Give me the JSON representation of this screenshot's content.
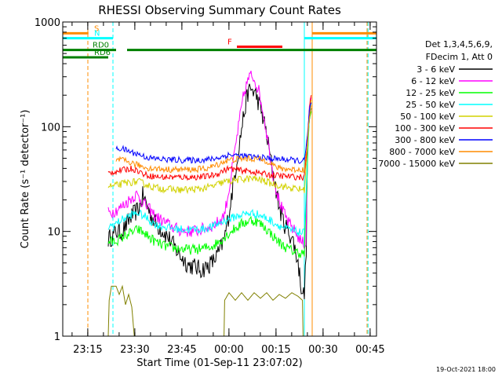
{
  "chart_data": {
    "type": "line",
    "title": "RHESSI Observing Summary Count Rates",
    "xlabel": "Start Time (01-Sep-11 23:07:02)",
    "ylabel": "Count Rate (s⁻¹ detector⁻¹)",
    "yscale": "log",
    "ylim": [
      1,
      1000
    ],
    "xlim_minutes_after_start": [
      0,
      100
    ],
    "x_tick_labels": [
      "23:15",
      "23:30",
      "23:45",
      "00:00",
      "00:15",
      "00:30",
      "00:45"
    ],
    "x_tick_minutes": [
      7.97,
      22.97,
      37.97,
      52.97,
      67.97,
      82.97,
      97.97
    ],
    "y_tick_labels": [
      "1",
      "10",
      "100",
      "1000"
    ],
    "y_tick_values": [
      1,
      10,
      100,
      1000
    ],
    "legend_header": [
      "Det 1,3,4,5,6,9,",
      "FDecim 1, Att 0"
    ],
    "legend_position": "right",
    "series": [
      {
        "name": "3 - 6 keV",
        "color": "#000000",
        "noise": 0.09,
        "points": [
          [
            14.5,
            8.5
          ],
          [
            16,
            9
          ],
          [
            17,
            10
          ],
          [
            18.5,
            9.8
          ],
          [
            20,
            11
          ],
          [
            21.5,
            13.5
          ],
          [
            23,
            15
          ],
          [
            24.5,
            17
          ],
          [
            25.5,
            22
          ],
          [
            26.5,
            19
          ],
          [
            28,
            14.5
          ],
          [
            30,
            11.5
          ],
          [
            32,
            10
          ],
          [
            34,
            8.5
          ],
          [
            36,
            6.8
          ],
          [
            38,
            5.6
          ],
          [
            40,
            4.8
          ],
          [
            42,
            4.6
          ],
          [
            44,
            4.3
          ],
          [
            46,
            4.6
          ],
          [
            48,
            5.2
          ],
          [
            50,
            6.5
          ],
          [
            51.5,
            8.5
          ],
          [
            53,
            15
          ],
          [
            54.5,
            30
          ],
          [
            56,
            60
          ],
          [
            57.5,
            120
          ],
          [
            59,
            210
          ],
          [
            60,
            230
          ],
          [
            61.5,
            205
          ],
          [
            63,
            150
          ],
          [
            64.5,
            100
          ],
          [
            66,
            55
          ],
          [
            67.5,
            30
          ],
          [
            69,
            17
          ],
          [
            70.5,
            12
          ],
          [
            72,
            10
          ],
          [
            73.5,
            8
          ],
          [
            75,
            5
          ],
          [
            76,
            3
          ],
          [
            77,
            2.4
          ],
          [
            77.6,
            7
          ],
          [
            78,
            55
          ],
          [
            78.6,
            120
          ],
          [
            79.2,
            150
          ]
        ]
      },
      {
        "name": "6 - 12 keV",
        "color": "#ff00ff",
        "noise": 0.06,
        "points": [
          [
            14.5,
            15
          ],
          [
            16,
            15.5
          ],
          [
            18,
            16.5
          ],
          [
            20,
            18.5
          ],
          [
            22,
            21
          ],
          [
            23.5,
            22.5
          ],
          [
            25,
            20
          ],
          [
            27,
            17
          ],
          [
            29,
            14.5
          ],
          [
            31,
            13
          ],
          [
            33,
            12
          ],
          [
            35,
            11
          ],
          [
            37,
            10.3
          ],
          [
            40,
            10
          ],
          [
            43,
            10.2
          ],
          [
            46,
            10.8
          ],
          [
            48,
            11.5
          ],
          [
            50,
            12.5
          ],
          [
            51.5,
            14.5
          ],
          [
            53,
            25
          ],
          [
            54.5,
            50
          ],
          [
            56,
            100
          ],
          [
            57.5,
            190
          ],
          [
            59,
            280
          ],
          [
            60,
            310
          ],
          [
            61,
            290
          ],
          [
            62.5,
            220
          ],
          [
            64,
            130
          ],
          [
            65.5,
            70
          ],
          [
            67,
            35
          ],
          [
            68.5,
            22
          ],
          [
            70,
            16
          ],
          [
            72,
            12
          ],
          [
            74,
            10
          ],
          [
            76,
            8
          ],
          [
            77.5,
            7.5
          ],
          [
            78,
            60
          ],
          [
            78.6,
            150
          ],
          [
            79.2,
            190
          ]
        ]
      },
      {
        "name": "12 - 25 keV",
        "color": "#00ff00",
        "noise": 0.05,
        "points": [
          [
            14.5,
            8
          ],
          [
            16,
            8
          ],
          [
            18,
            8.4
          ],
          [
            20,
            9.2
          ],
          [
            22,
            9.8
          ],
          [
            24,
            10.4
          ],
          [
            26,
            9.6
          ],
          [
            28,
            8.6
          ],
          [
            30,
            7.8
          ],
          [
            33,
            7.2
          ],
          [
            36,
            6.9
          ],
          [
            40,
            6.7
          ],
          [
            44,
            6.8
          ],
          [
            48,
            7.3
          ],
          [
            51,
            8.6
          ],
          [
            54,
            10.2
          ],
          [
            57,
            11.8
          ],
          [
            60,
            12.8
          ],
          [
            62,
            12.4
          ],
          [
            64,
            11.2
          ],
          [
            66,
            9.8
          ],
          [
            68,
            8.4
          ],
          [
            70,
            7.4
          ],
          [
            72,
            6.8
          ],
          [
            74,
            6.4
          ],
          [
            77,
            6.1
          ],
          [
            78,
            45
          ],
          [
            78.6,
            110
          ],
          [
            79.2,
            140
          ]
        ]
      },
      {
        "name": "25 - 50 keV",
        "color": "#00ffff",
        "noise": 0.04,
        "points": [
          [
            14.5,
            11
          ],
          [
            16,
            11.5
          ],
          [
            18,
            12.5
          ],
          [
            20,
            13.5
          ],
          [
            22,
            14.5
          ],
          [
            24,
            15
          ],
          [
            26,
            14
          ],
          [
            28,
            12.5
          ],
          [
            30,
            11.5
          ],
          [
            33,
            11
          ],
          [
            36,
            10.6
          ],
          [
            40,
            10.4
          ],
          [
            44,
            10.5
          ],
          [
            48,
            11.2
          ],
          [
            51,
            12.5
          ],
          [
            54,
            13.5
          ],
          [
            57,
            14.5
          ],
          [
            60,
            15
          ],
          [
            62,
            14.6
          ],
          [
            64,
            13.8
          ],
          [
            66,
            12.8
          ],
          [
            68,
            11.8
          ],
          [
            70,
            11
          ],
          [
            72,
            10.4
          ],
          [
            74,
            10
          ],
          [
            77,
            9.6
          ],
          [
            78,
            55
          ],
          [
            78.6,
            130
          ],
          [
            79.2,
            165
          ]
        ]
      },
      {
        "name": "50 - 100 keV",
        "color": "#d2d200",
        "noise": 0.035,
        "points": [
          [
            14.5,
            27
          ],
          [
            16,
            27
          ],
          [
            18,
            28
          ],
          [
            20,
            29
          ],
          [
            22,
            29.5
          ],
          [
            24,
            30
          ],
          [
            26,
            28.5
          ],
          [
            28,
            27
          ],
          [
            30,
            26
          ],
          [
            33,
            25.5
          ],
          [
            36,
            25
          ],
          [
            40,
            25
          ],
          [
            44,
            25.5
          ],
          [
            48,
            27
          ],
          [
            51,
            29.5
          ],
          [
            54,
            30.5
          ],
          [
            57,
            31.5
          ],
          [
            60,
            32
          ],
          [
            62,
            31.5
          ],
          [
            64,
            30.5
          ],
          [
            66,
            29
          ],
          [
            68,
            28
          ],
          [
            70,
            27
          ],
          [
            72,
            26.2
          ],
          [
            74,
            25.6
          ],
          [
            77,
            25
          ],
          [
            78,
            60
          ],
          [
            78.6,
            140
          ],
          [
            79.2,
            180
          ]
        ]
      },
      {
        "name": "100 - 300 keV",
        "color": "#ff0000",
        "noise": 0.03,
        "points": [
          [
            14.5,
            36
          ],
          [
            16,
            37
          ],
          [
            18,
            38
          ],
          [
            20,
            39
          ],
          [
            22,
            40
          ],
          [
            24,
            38
          ],
          [
            26,
            35
          ],
          [
            28,
            34
          ],
          [
            31,
            33
          ],
          [
            34,
            33
          ],
          [
            38,
            33
          ],
          [
            42,
            33
          ],
          [
            46,
            33.5
          ],
          [
            49,
            35
          ],
          [
            51,
            38
          ],
          [
            53,
            40
          ],
          [
            55,
            39
          ],
          [
            58,
            38
          ],
          [
            61,
            37
          ],
          [
            63,
            36
          ],
          [
            65,
            35
          ],
          [
            67,
            34.5
          ],
          [
            69,
            34
          ],
          [
            72,
            33.5
          ],
          [
            75,
            33
          ],
          [
            77,
            33
          ],
          [
            78,
            70
          ],
          [
            78.6,
            150
          ],
          [
            79.2,
            200
          ]
        ]
      },
      {
        "name": "300 - 800 keV",
        "color": "#0000ff",
        "noise": 0.03,
        "points": [
          [
            17,
            61
          ],
          [
            18.5,
            62
          ],
          [
            20,
            60
          ],
          [
            22,
            57
          ],
          [
            24,
            55
          ],
          [
            26,
            52
          ],
          [
            28,
            50
          ],
          [
            31,
            49
          ],
          [
            34,
            48.5
          ],
          [
            38,
            48
          ],
          [
            42,
            48
          ],
          [
            46,
            48.5
          ],
          [
            49,
            50
          ],
          [
            51,
            52
          ],
          [
            53,
            54
          ],
          [
            56,
            53
          ],
          [
            59,
            52
          ],
          [
            62,
            51
          ],
          [
            65,
            50
          ],
          [
            67,
            49.5
          ],
          [
            70,
            49
          ],
          [
            73,
            48
          ],
          [
            76,
            47
          ],
          [
            77,
            47
          ],
          [
            78,
            80
          ],
          [
            78.6,
            140
          ],
          [
            79.2,
            170
          ]
        ]
      },
      {
        "name": "800 - 7000 keV",
        "color": "#ff8c00",
        "noise": 0.03,
        "points": [
          [
            17,
            48
          ],
          [
            18.5,
            48
          ],
          [
            20,
            47
          ],
          [
            22,
            45
          ],
          [
            24,
            43
          ],
          [
            26,
            41
          ],
          [
            28,
            40
          ],
          [
            31,
            39.5
          ],
          [
            34,
            39
          ],
          [
            38,
            39
          ],
          [
            42,
            39
          ],
          [
            46,
            40
          ],
          [
            49,
            43
          ],
          [
            51,
            46
          ],
          [
            53,
            48
          ],
          [
            56,
            49
          ],
          [
            59,
            49.5
          ],
          [
            62,
            49
          ],
          [
            64,
            48
          ],
          [
            66,
            46
          ],
          [
            67.5,
            42
          ],
          [
            69,
            40
          ],
          [
            71,
            39.5
          ],
          [
            74,
            39
          ],
          [
            77,
            39
          ],
          [
            78,
            70
          ],
          [
            78.6,
            130
          ],
          [
            79.2,
            160
          ]
        ]
      },
      {
        "name": "7000 - 15000 keV",
        "color": "#808000",
        "noise": 0.0,
        "points": [
          [
            14.5,
            1
          ],
          [
            14.8,
            2.2
          ],
          [
            15.5,
            3
          ],
          [
            17,
            3
          ],
          [
            18,
            2.5
          ],
          [
            19,
            3
          ],
          [
            20,
            2
          ],
          [
            21,
            2.5
          ],
          [
            22,
            1.9
          ],
          [
            22.8,
            1
          ],
          [
            51.4,
            1
          ],
          [
            51.6,
            2.2
          ],
          [
            53,
            2.6
          ],
          [
            55,
            2.2
          ],
          [
            57,
            2.6
          ],
          [
            59,
            2.2
          ],
          [
            61,
            2.6
          ],
          [
            63,
            2.3
          ],
          [
            65,
            2.6
          ],
          [
            67,
            2.2
          ],
          [
            69,
            2.5
          ],
          [
            71,
            2.3
          ],
          [
            73,
            2.6
          ],
          [
            75,
            2.4
          ],
          [
            76.4,
            2.2
          ],
          [
            76.6,
            1
          ]
        ]
      }
    ],
    "state_bars": [
      {
        "label": "S",
        "color": "#ff8c00",
        "y": 780,
        "segments": [
          [
            0,
            8.2
          ],
          [
            79.5,
            100
          ]
        ]
      },
      {
        "label": "N",
        "color": "#00ffff",
        "y": 700,
        "segments": [
          [
            0,
            16
          ],
          [
            77,
            100
          ]
        ]
      },
      {
        "label": "F",
        "color": "#ff0000",
        "y": 580,
        "segments": [
          [
            55.5,
            70
          ]
        ]
      },
      {
        "label": "RD0",
        "color": "#008000",
        "y": 540,
        "segments": [
          [
            0,
            17
          ],
          [
            20.5,
            51.5
          ],
          [
            51.5,
            68
          ],
          [
            68,
            100
          ]
        ]
      },
      {
        "label": "RD6",
        "color": "#008000",
        "y": 460,
        "segments": [
          [
            0,
            14.5
          ]
        ]
      }
    ],
    "vertical_markers": [
      {
        "x": 8.0,
        "color": "#ff8c00",
        "dashed": true
      },
      {
        "x": 16.0,
        "color": "#00ffff",
        "dashed": true
      },
      {
        "x": 77.0,
        "color": "#00ffff",
        "dashed": false
      },
      {
        "x": 79.5,
        "color": "#ff8c00",
        "dashed": false
      },
      {
        "x": 97.0,
        "color": "#ff8c00",
        "dashed": true
      },
      {
        "x": 97.3,
        "color": "#00ffff",
        "dashed": true
      }
    ]
  },
  "footer": {
    "timestamp": "19-Oct-2021 18:00"
  }
}
